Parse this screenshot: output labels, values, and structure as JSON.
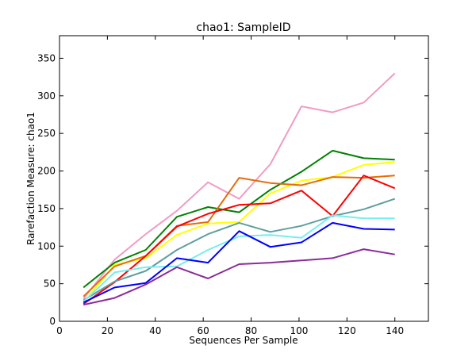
{
  "chart_data": {
    "type": "line",
    "title": "chao1: SampleID",
    "xlabel": "Sequences Per Sample",
    "ylabel": "Rarefaction Measure: chao1",
    "xlim": [
      0,
      154
    ],
    "ylim": [
      0,
      380
    ],
    "xticks": [
      0,
      20,
      40,
      60,
      80,
      100,
      120,
      140
    ],
    "yticks": [
      0,
      50,
      100,
      150,
      200,
      250,
      300,
      350
    ],
    "grid": false,
    "legend": "none",
    "x": [
      10,
      23,
      36,
      49,
      62,
      75,
      88,
      101,
      114,
      127,
      140
    ],
    "series": [
      {
        "color": "#f19cc3",
        "values": [
          30,
          82,
          116,
          147,
          185,
          163,
          209,
          286,
          278,
          291,
          330
        ]
      },
      {
        "color": "#008000",
        "values": [
          45,
          78,
          95,
          139,
          152,
          145,
          175,
          199,
          227,
          217,
          215
        ]
      },
      {
        "color": "#ffff00",
        "values": [
          25,
          75,
          84,
          115,
          130,
          132,
          170,
          187,
          192,
          208,
          212
        ]
      },
      {
        "color": "#e46c0a",
        "values": [
          33,
          73,
          87,
          127,
          132,
          191,
          184,
          181,
          192,
          191,
          194
        ]
      },
      {
        "color": "#ff0000",
        "values": [
          23,
          52,
          87,
          126,
          143,
          155,
          157,
          174,
          140,
          194,
          177
        ]
      },
      {
        "color": "#5f9ea0",
        "values": [
          28,
          53,
          67,
          95,
          116,
          131,
          119,
          127,
          140,
          149,
          163
        ]
      },
      {
        "color": "#76eeee",
        "values": [
          26,
          65,
          72,
          73,
          95,
          113,
          115,
          111,
          141,
          137,
          137
        ]
      },
      {
        "color": "#0000ff",
        "values": [
          25,
          45,
          51,
          84,
          78,
          120,
          99,
          105,
          131,
          123,
          122
        ]
      },
      {
        "color": "#8b2b9a",
        "values": [
          22,
          31,
          49,
          72,
          57,
          76,
          78,
          81,
          84,
          96,
          89
        ]
      }
    ]
  }
}
